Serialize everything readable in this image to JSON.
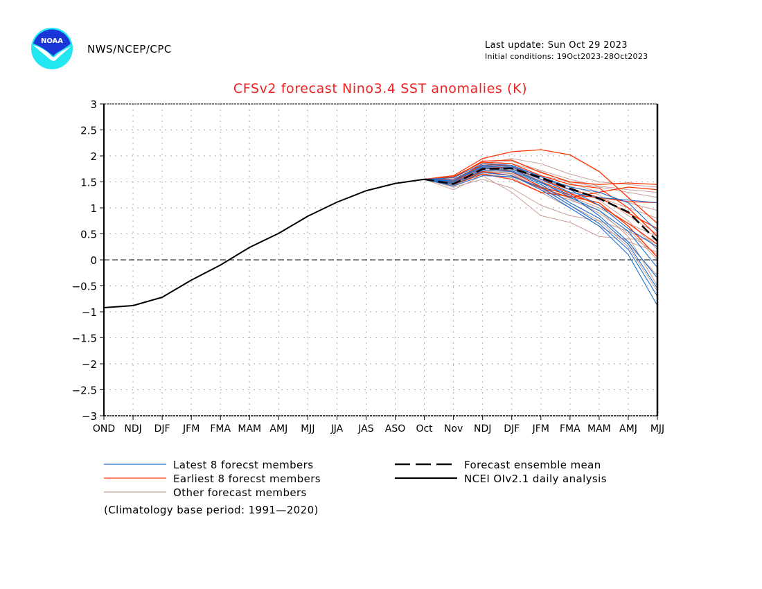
{
  "header": {
    "agency": "NWS/NCEP/CPC",
    "logo": "noaa-logo",
    "last_update": "Last update: Sun Oct 29 2023",
    "initial_conditions": "Initial conditions: 19Oct2023-28Oct2023"
  },
  "colors": {
    "title": "#ee2222",
    "latest": "#1e6fd0",
    "earliest": "#ff3300",
    "other": "#c8a098",
    "analysis": "#000000",
    "grid": "#aaaaaa"
  },
  "chart_data": {
    "type": "line",
    "title": "CFSv2 forecast Nino3.4 SST anomalies (K)",
    "xlabel": "",
    "ylabel": "",
    "ylim": [
      -3,
      3
    ],
    "yticks": [
      3,
      2.5,
      2,
      1.5,
      1,
      0.5,
      0,
      -0.5,
      -1,
      -1.5,
      -2,
      -2.5,
      -3
    ],
    "ytick_labels": [
      "3",
      "2.5",
      "2",
      "1.5",
      "1",
      "0.5",
      "0",
      "−0.5",
      "−1",
      "−1.5",
      "−2",
      "−2.5",
      "−3"
    ],
    "categories": [
      "OND",
      "NDJ",
      "DJF",
      "JFM",
      "FMA",
      "MAM",
      "AMJ",
      "MJJ",
      "JJA",
      "JAS",
      "ASO",
      "Oct",
      "Nov",
      "NDJ",
      "DJF",
      "JFM",
      "FMA",
      "MAM",
      "AMJ",
      "MJJ"
    ],
    "grid": true,
    "zero_line": "dashed",
    "legend_position": "bottom",
    "analysis": {
      "name": "NCEI OIv2.1 daily analysis",
      "start_index": 0,
      "values": [
        -0.92,
        -0.88,
        -0.72,
        -0.39,
        -0.1,
        0.24,
        0.51,
        0.84,
        1.11,
        1.33,
        1.47,
        1.55
      ]
    },
    "ensemble_mean": {
      "name": "Forecast ensemble mean",
      "start_index": 11,
      "values": [
        1.55,
        1.46,
        1.75,
        1.76,
        1.58,
        1.37,
        1.18,
        0.92,
        0.36
      ]
    },
    "members_start_index": 11,
    "latest_members": {
      "name": "Latest 8 forecst members",
      "values": [
        [
          1.55,
          1.55,
          1.8,
          1.78,
          1.55,
          1.3,
          1.2,
          1.15,
          1.1
        ],
        [
          1.55,
          1.52,
          1.78,
          1.75,
          1.5,
          1.2,
          0.95,
          0.55,
          -0.15
        ],
        [
          1.55,
          1.48,
          1.72,
          1.7,
          1.45,
          1.1,
          0.8,
          0.3,
          -0.55
        ],
        [
          1.55,
          1.45,
          1.68,
          1.62,
          1.35,
          1.0,
          0.65,
          0.1,
          -0.88
        ],
        [
          1.55,
          1.5,
          1.82,
          1.8,
          1.6,
          1.35,
          1.05,
          0.6,
          0.25
        ],
        [
          1.55,
          1.42,
          1.62,
          1.6,
          1.4,
          1.05,
          0.7,
          0.2,
          -0.7
        ],
        [
          1.55,
          1.47,
          1.76,
          1.72,
          1.48,
          1.25,
          0.85,
          0.35,
          -0.35
        ],
        [
          1.55,
          1.58,
          1.85,
          1.82,
          1.6,
          1.4,
          1.3,
          1.1,
          0.55
        ]
      ]
    },
    "earliest_members": {
      "name": "Earliest 8 forecst members",
      "values": [
        [
          1.55,
          1.62,
          1.95,
          2.08,
          2.12,
          2.02,
          1.7,
          1.2,
          0.7
        ],
        [
          1.55,
          1.58,
          1.9,
          1.92,
          1.68,
          1.5,
          1.45,
          1.48,
          1.45
        ],
        [
          1.55,
          1.52,
          1.85,
          1.8,
          1.55,
          1.35,
          1.2,
          1.12,
          1.1
        ],
        [
          1.55,
          1.5,
          1.78,
          1.7,
          1.4,
          1.25,
          1.2,
          0.9,
          0.6
        ],
        [
          1.55,
          1.55,
          1.82,
          1.75,
          1.5,
          1.28,
          1.05,
          0.7,
          0.3
        ],
        [
          1.55,
          1.45,
          1.65,
          1.55,
          1.3,
          1.22,
          1.1,
          0.65,
          0.05
        ],
        [
          1.55,
          1.6,
          1.88,
          1.85,
          1.62,
          1.45,
          1.38,
          1.0,
          0.45
        ],
        [
          1.55,
          1.48,
          1.7,
          1.62,
          1.38,
          1.2,
          1.3,
          1.4,
          1.35
        ]
      ]
    },
    "other_members": {
      "name": "Other forecast members",
      "values": [
        [
          1.55,
          1.4,
          1.55,
          1.38,
          1.05,
          0.85,
          0.75,
          0.55,
          0.3
        ],
        [
          1.55,
          1.35,
          1.62,
          1.3,
          0.85,
          0.72,
          0.45,
          0.4,
          0.4
        ],
        [
          1.55,
          1.5,
          1.85,
          1.95,
          1.85,
          1.65,
          1.5,
          1.45,
          1.4
        ],
        [
          1.55,
          1.45,
          1.75,
          1.78,
          1.62,
          1.5,
          1.4,
          1.3,
          1.2
        ],
        [
          1.55,
          1.48,
          1.8,
          1.72,
          1.5,
          1.3,
          1.05,
          0.6,
          0.0
        ],
        [
          1.55,
          1.42,
          1.7,
          1.68,
          1.42,
          1.1,
          0.8,
          0.3,
          -0.3
        ],
        [
          1.55,
          1.52,
          1.78,
          1.75,
          1.55,
          1.42,
          1.25,
          0.85,
          0.5
        ],
        [
          1.55,
          1.46,
          1.72,
          1.65,
          1.35,
          1.15,
          0.95,
          0.45,
          -0.5
        ],
        [
          1.55,
          1.5,
          1.82,
          1.85,
          1.7,
          1.48,
          1.3,
          1.1,
          0.95
        ],
        [
          1.55,
          1.44,
          1.68,
          1.62,
          1.4,
          1.18,
          0.9,
          0.5,
          0.1
        ],
        [
          1.55,
          1.47,
          1.76,
          1.8,
          1.6,
          1.4,
          1.15,
          0.75,
          0.2
        ],
        [
          1.55,
          1.49,
          1.74,
          1.7,
          1.45,
          1.22,
          1.0,
          0.7,
          0.45
        ],
        [
          1.55,
          1.43,
          1.66,
          1.58,
          1.3,
          1.0,
          0.65,
          0.35,
          0.15
        ],
        [
          1.55,
          1.51,
          1.8,
          1.76,
          1.52,
          1.35,
          1.2,
          1.0,
          0.8
        ],
        [
          1.55,
          1.46,
          1.7,
          1.66,
          1.38,
          1.05,
          0.75,
          0.25,
          -0.6
        ],
        [
          1.55,
          1.53,
          1.84,
          1.9,
          1.72,
          1.55,
          1.42,
          1.35,
          1.3
        ]
      ]
    },
    "footnote": "(Climatology base period: 1991—2020)"
  },
  "legend": [
    {
      "label": "Latest 8 forecst members",
      "style": "latest"
    },
    {
      "label": "Earliest 8 forecst members",
      "style": "earliest"
    },
    {
      "label": "Other forecast members",
      "style": "other"
    },
    {
      "label": "Forecast ensemble mean",
      "style": "mean"
    },
    {
      "label": "NCEI OIv2.1 daily analysis",
      "style": "analysis"
    }
  ]
}
